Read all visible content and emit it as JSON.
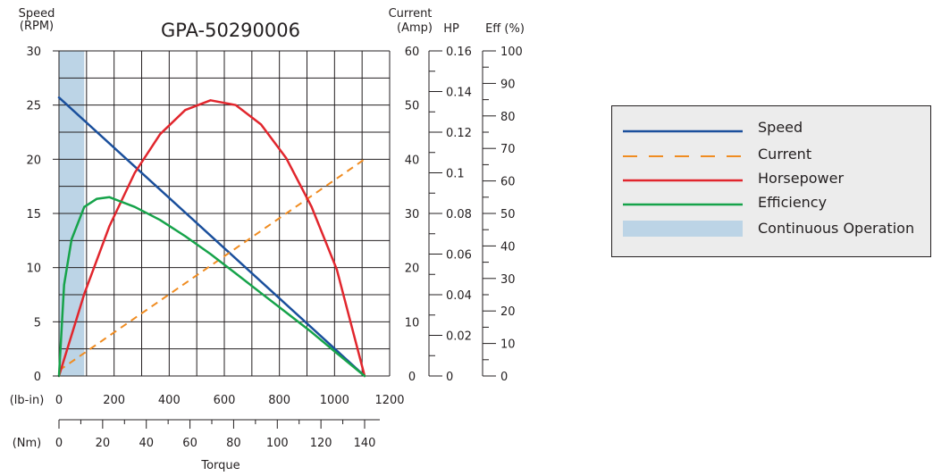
{
  "chart_data": {
    "type": "line",
    "title": "GPA-50290006",
    "colors": {
      "speed": "#1a4f9c",
      "current": "#f08c21",
      "horsepower": "#e1262d",
      "efficiency": "#16a34a",
      "continuous": "#bcd4e6",
      "title": "#2e5aa8"
    },
    "axes": {
      "speed": {
        "label_line1": "Speed",
        "label_line2": "(RPM)",
        "range": [
          0,
          30
        ],
        "ticks": [
          "0",
          "5",
          "10",
          "15",
          "20",
          "25",
          "30"
        ]
      },
      "current": {
        "label_line1": "Current",
        "label_line2": "(Amp)",
        "range": [
          0,
          60
        ],
        "ticks": [
          "0",
          "10",
          "20",
          "30",
          "40",
          "50",
          "60"
        ]
      },
      "hp": {
        "label": "HP",
        "range": [
          0,
          0.16
        ],
        "ticks": [
          "0",
          "0.02",
          "0.04",
          "0.06",
          "0.08",
          "0.1",
          "0.12",
          "0.14",
          "0.16"
        ]
      },
      "eff": {
        "label": "Eff (%)",
        "range": [
          0,
          100
        ],
        "ticks": [
          "0",
          "10",
          "20",
          "30",
          "40",
          "50",
          "60",
          "70",
          "80",
          "90",
          "100"
        ]
      },
      "torque_lbin": {
        "unit": "(lb-in)",
        "range": [
          0,
          1200
        ],
        "ticks": [
          "0",
          "200",
          "400",
          "600",
          "800",
          "1000",
          "1200"
        ]
      },
      "torque_nm": {
        "unit": "(Nm)",
        "range": [
          0,
          140
        ],
        "ticks": [
          "0",
          "20",
          "40",
          "60",
          "80",
          "100",
          "120",
          "140"
        ]
      },
      "xlabel": "Torque"
    },
    "grid": true,
    "legend_placement": "right",
    "series": [
      {
        "key": "speed",
        "name": "Speed",
        "axis": "speed",
        "style": "solid",
        "x": [
          0,
          1210
        ],
        "y": [
          25.7,
          0
        ]
      },
      {
        "key": "current",
        "name": "Current",
        "axis": "current",
        "style": "dashed",
        "x": [
          0,
          1210
        ],
        "y": [
          1,
          40
        ]
      },
      {
        "key": "horsepower",
        "name": "Horsepower",
        "axis": "hp",
        "style": "solid",
        "x": [
          0,
          100,
          200,
          300,
          400,
          500,
          600,
          700,
          800,
          900,
          1000,
          1100,
          1210
        ],
        "y": [
          0,
          0.0404,
          0.0738,
          0.1,
          0.119,
          0.1309,
          0.1357,
          0.1333,
          0.1238,
          0.1071,
          0.0833,
          0.0524,
          0
        ]
      },
      {
        "key": "efficiency",
        "name": "Efficiency",
        "axis": "eff",
        "style": "solid",
        "x": [
          0,
          20,
          50,
          100,
          150,
          200,
          300,
          400,
          500,
          600,
          700,
          800,
          900,
          1000,
          1100,
          1210
        ],
        "y": [
          0,
          28,
          42,
          52,
          54.5,
          55,
          52,
          48,
          43,
          37.5,
          31.5,
          25.5,
          19.5,
          13.5,
          7,
          0
        ]
      }
    ],
    "continuous_operation": {
      "name": "Continuous Operation",
      "x_range": [
        0,
        100
      ]
    }
  }
}
